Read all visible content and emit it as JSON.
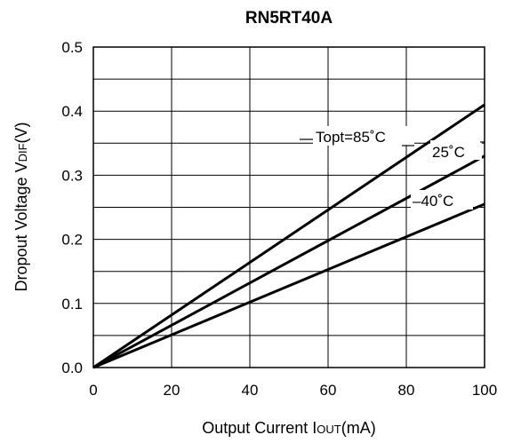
{
  "chart_data": {
    "type": "line",
    "title": "RN5RT40A",
    "xlabel": {
      "main": "Output Current I",
      "sub": "OUT",
      "unit": "(mA)"
    },
    "ylabel": {
      "main": "Dropout Voltage V",
      "sub": "DIF",
      "unit": "(V)"
    },
    "xlim": [
      0,
      100
    ],
    "ylim": [
      0,
      0.5
    ],
    "xticks": [
      0,
      20,
      40,
      60,
      80,
      100
    ],
    "xtick_labels": [
      "0",
      "20",
      "40",
      "60",
      "80",
      "100"
    ],
    "yticks": [
      0,
      0.1,
      0.2,
      0.3,
      0.4,
      0.5
    ],
    "ytick_labels": [
      "0.0",
      "0.1",
      "0.2",
      "0.3",
      "0.4",
      "0.5"
    ],
    "grid": {
      "x_step": 20,
      "y_step": 0.05
    },
    "series": [
      {
        "name": "Topt=85˚C",
        "x": [
          0,
          100
        ],
        "y": [
          0,
          0.41
        ]
      },
      {
        "name": "25˚C",
        "x": [
          0,
          100
        ],
        "y": [
          0,
          0.33
        ]
      },
      {
        "name": "–40˚C",
        "x": [
          0,
          100
        ],
        "y": [
          0,
          0.255
        ]
      }
    ]
  }
}
